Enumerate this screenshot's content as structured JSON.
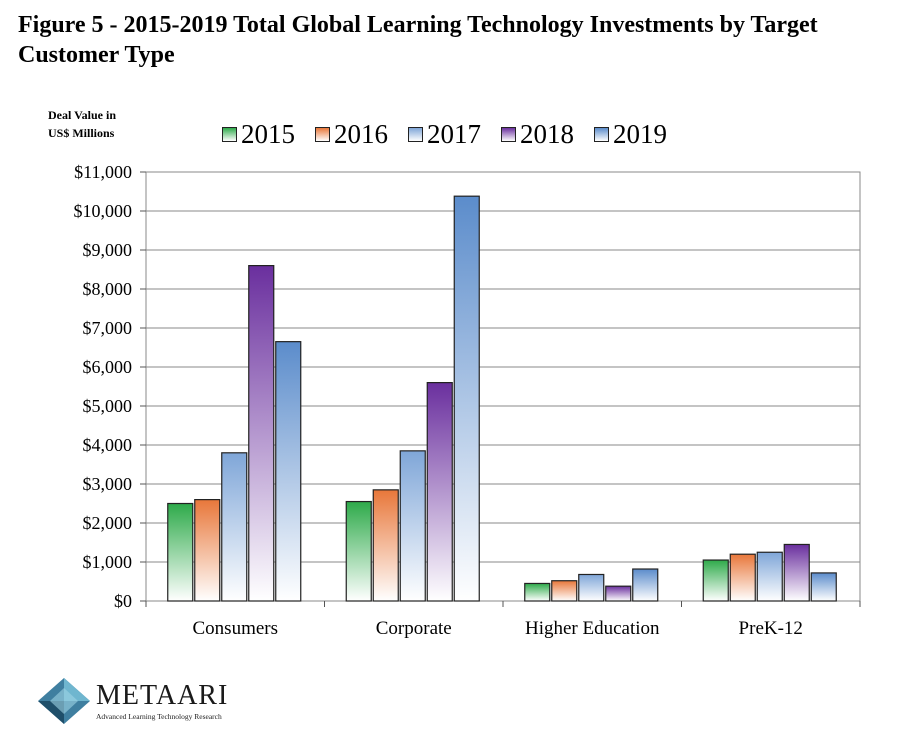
{
  "figure": {
    "title": "Figure 5 - 2015-2019 Total Global Learning Technology Investments by Target Customer Type"
  },
  "chart_data": {
    "type": "bar",
    "title": "Figure 5 - 2015-2019 Total Global Learning Technology Investments by Target Customer Type",
    "ylabel_line1": "Deal Value in",
    "ylabel_line2": "US$ Millions",
    "xlabel": "",
    "ylim": [
      0,
      11000
    ],
    "yticks": [
      0,
      1000,
      2000,
      3000,
      4000,
      5000,
      6000,
      7000,
      8000,
      9000,
      10000,
      11000
    ],
    "ytick_labels": [
      "$0",
      "$1,000",
      "$2,000",
      "$3,000",
      "$4,000",
      "$5,000",
      "$6,000",
      "$7,000",
      "$8,000",
      "$9,000",
      "$10,000",
      "$11,000"
    ],
    "grid": true,
    "legend_position": "top",
    "categories": [
      "Consumers",
      "Corporate",
      "Higher Education",
      "PreK-12"
    ],
    "series": [
      {
        "name": "2015",
        "color": "#2eaa4a",
        "values": [
          2500,
          2550,
          450,
          1050
        ]
      },
      {
        "name": "2016",
        "color": "#e8773a",
        "values": [
          2600,
          2850,
          520,
          1200
        ]
      },
      {
        "name": "2017",
        "color": "#7fa6d8",
        "values": [
          3800,
          3850,
          680,
          1250
        ]
      },
      {
        "name": "2018",
        "color": "#6a2f9e",
        "values": [
          8600,
          5600,
          380,
          1450
        ]
      },
      {
        "name": "2019",
        "color": "#5b8ccb",
        "values": [
          6650,
          10380,
          820,
          720
        ]
      }
    ]
  },
  "logo": {
    "name": "METAARI",
    "tagline": "Advanced Learning Technology Research",
    "icon": "diamond-logo-icon"
  }
}
